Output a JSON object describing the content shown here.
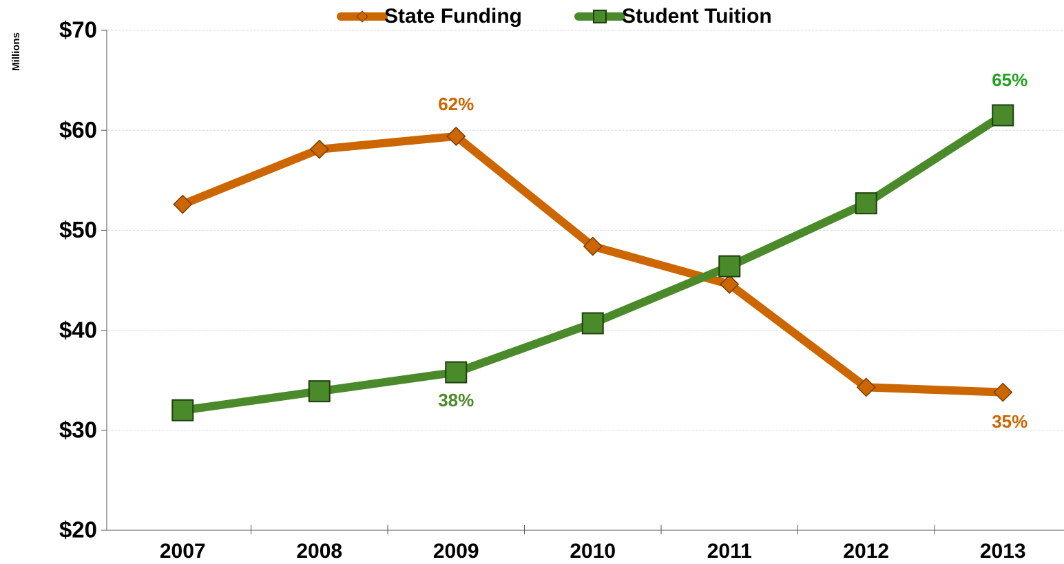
{
  "chart_data": {
    "type": "line",
    "y_axis_label": "Millions",
    "categories": [
      "2007",
      "2008",
      "2009",
      "2010",
      "2011",
      "2012",
      "2013"
    ],
    "series": [
      {
        "name": "State Funding",
        "color": "#cc6600",
        "marker": "diamond",
        "values": [
          52.6,
          58.1,
          59.4,
          48.4,
          44.6,
          34.3,
          33.8
        ]
      },
      {
        "name": "Student Tuition",
        "color": "#4a8a2a",
        "marker": "square",
        "values": [
          32.0,
          33.9,
          35.8,
          40.7,
          46.4,
          52.7,
          61.5
        ]
      }
    ],
    "annotations": [
      {
        "text": "62%",
        "color": "#cc6600"
      },
      {
        "text": "38%",
        "color": "#4a8a2a"
      },
      {
        "text": "65%",
        "color": "#22a022"
      },
      {
        "text": "35%",
        "color": "#cc6600"
      }
    ],
    "ylim": [
      20,
      70
    ],
    "yticks": [
      {
        "value": 20,
        "label": "$20"
      },
      {
        "value": 30,
        "label": "$30"
      },
      {
        "value": 40,
        "label": "$40"
      },
      {
        "value": 50,
        "label": "$50"
      },
      {
        "value": 60,
        "label": "$60"
      },
      {
        "value": 70,
        "label": "$70"
      }
    ],
    "grid": true,
    "legend": "top"
  }
}
